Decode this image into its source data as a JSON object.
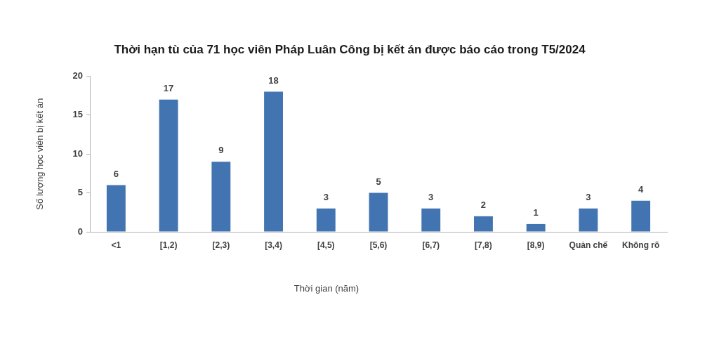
{
  "chart_data": {
    "type": "bar",
    "title": "Thời hạn tù của 71 học viên Pháp Luân Công bị kết án được báo cáo trong T5/2024",
    "xlabel": "Thời gian (năm)",
    "ylabel": "Số lượng học viên bị kết án",
    "categories": [
      "<1",
      "[1,2)",
      "[2,3)",
      "[3,4)",
      "[4,5)",
      "[5,6)",
      "[6,7)",
      "[7,8)",
      "[8,9)",
      "Quản chế",
      "Không rõ"
    ],
    "values": [
      6,
      17,
      9,
      18,
      3,
      5,
      3,
      2,
      1,
      3,
      4
    ],
    "color": "#4374b2",
    "ylim": [
      0,
      20
    ],
    "yticks": [
      0,
      5,
      10,
      15,
      20
    ],
    "grid": false,
    "data_labels": true
  }
}
